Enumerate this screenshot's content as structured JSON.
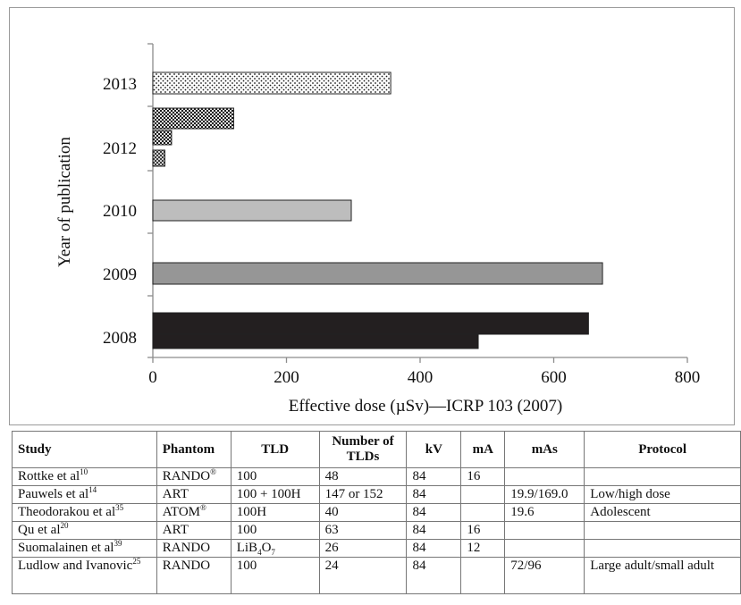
{
  "chart_data": {
    "type": "bar",
    "orientation": "horizontal",
    "xlabel": "Effective dose (µSv)—ICRP 103 (2007)",
    "ylabel": "Year of publication",
    "xlim": [
      0,
      800
    ],
    "xticks": [
      "0",
      "200",
      "400",
      "600",
      "800"
    ],
    "categories": [
      "2008",
      "2009",
      "2010",
      "2012",
      "2013"
    ],
    "bars": [
      {
        "year": "2008",
        "value": 652,
        "pattern": "solid-black"
      },
      {
        "year": "2008",
        "value": 487,
        "pattern": "solid-black"
      },
      {
        "year": "2009",
        "value": 673,
        "pattern": "dark-gray"
      },
      {
        "year": "2010",
        "value": 297,
        "pattern": "light-gray"
      },
      {
        "year": "2012",
        "value": 18,
        "pattern": "checker"
      },
      {
        "year": "2012",
        "value": 28,
        "pattern": "dense-checker"
      },
      {
        "year": "2012",
        "value": 121,
        "pattern": "dense-checker"
      },
      {
        "year": "2013",
        "value": 356,
        "pattern": "dotted"
      }
    ],
    "grid": false,
    "legend": "none",
    "colors": {
      "solid": "#231f20",
      "dark_gray": "#969696",
      "light_gray": "#bdbdbd",
      "pattern_fg": "#1a1a1a",
      "axis": "#8c8c8c"
    }
  },
  "table": {
    "headers": [
      "Study",
      "Phantom",
      "TLD",
      "Number of TLDs",
      "kV",
      "mA",
      "mAs",
      "Protocol"
    ],
    "rows": [
      {
        "study": "Rottke et al",
        "ref": "10",
        "phantom": "RANDO",
        "phantom_mark": "®",
        "tld": "100",
        "tld_sub": "",
        "tld_tail": "",
        "n": "48",
        "kv": "84",
        "ma": "16",
        "mas": "",
        "protocol": ""
      },
      {
        "study": "Pauwels et al",
        "ref": "14",
        "phantom": "ART",
        "phantom_mark": "",
        "tld": "100 + 100H",
        "tld_sub": "",
        "tld_tail": "",
        "n": "147 or 152",
        "kv": "84",
        "ma": "",
        "mas": "19.9/169.0",
        "protocol": "Low/high dose"
      },
      {
        "study": "Theodorakou et al",
        "ref": "35",
        "phantom": "ATOM",
        "phantom_mark": "®",
        "tld": "100H",
        "tld_sub": "",
        "tld_tail": "",
        "n": "40",
        "kv": "84",
        "ma": "",
        "mas": "19.6",
        "protocol": "Adolescent"
      },
      {
        "study": "Qu et al",
        "ref": "20",
        "phantom": "ART",
        "phantom_mark": "",
        "tld": "100",
        "tld_sub": "",
        "tld_tail": "",
        "n": "63",
        "kv": "84",
        "ma": "16",
        "mas": "",
        "protocol": ""
      },
      {
        "study": "Suomalainen et al",
        "ref": "39",
        "phantom": "RANDO",
        "phantom_mark": "",
        "tld": "LiB",
        "tld_sub": "4",
        "tld_tail": "O",
        "tld_sub2": "7",
        "n": "26",
        "kv": "84",
        "ma": "12",
        "mas": "",
        "protocol": ""
      },
      {
        "study": "Ludlow and Ivanovic",
        "ref": "25",
        "phantom": "RANDO",
        "phantom_mark": "",
        "tld": "100",
        "tld_sub": "",
        "tld_tail": "",
        "n": "24",
        "kv": "84",
        "ma": "",
        "mas": "72/96",
        "protocol": "Large adult/small adult"
      }
    ]
  }
}
